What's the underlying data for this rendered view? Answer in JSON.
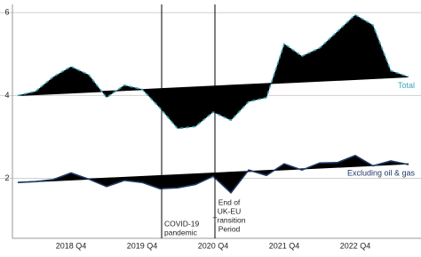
{
  "chart_data": {
    "type": "line-deviation",
    "categories": [
      null,
      null,
      null,
      "2018 Q4",
      null,
      null,
      null,
      "2019 Q4",
      null,
      null,
      null,
      "2020 Q4",
      null,
      null,
      null,
      "2021 Q4",
      null,
      null,
      null,
      "2022 Q4",
      null,
      null,
      null
    ],
    "series": [
      {
        "name": "Total",
        "color": "#3aa6b9",
        "fill": "#000000",
        "values": [
          4.0,
          4.1,
          4.45,
          4.7,
          4.5,
          3.95,
          4.25,
          4.15,
          3.7,
          3.2,
          3.25,
          3.6,
          3.4,
          3.85,
          3.95,
          5.25,
          4.95,
          5.15,
          5.55,
          5.95,
          5.7,
          4.6,
          4.45
        ],
        "trend": [
          4.0,
          4.45
        ]
      },
      {
        "name": "Excluding oil & gas",
        "color": "#1f3864",
        "fill": "#000000",
        "values": [
          1.9,
          1.92,
          1.97,
          2.13,
          1.98,
          1.8,
          1.95,
          1.9,
          1.75,
          1.77,
          1.85,
          2.05,
          1.65,
          2.2,
          2.07,
          2.35,
          2.2,
          2.37,
          2.38,
          2.55,
          2.3,
          2.42,
          2.33
        ],
        "trend": [
          1.9,
          2.35
        ]
      }
    ],
    "annotations": [
      {
        "category_index": 8,
        "lines": [
          "COVID-19",
          "pandemic"
        ]
      },
      {
        "category_index": 11,
        "lines": [
          "End of",
          "UK-EU",
          "Transition",
          "Period"
        ]
      }
    ],
    "ylim": [
      0.55,
      6.2
    ],
    "yticks": [
      2,
      4,
      6
    ],
    "grid": true
  }
}
